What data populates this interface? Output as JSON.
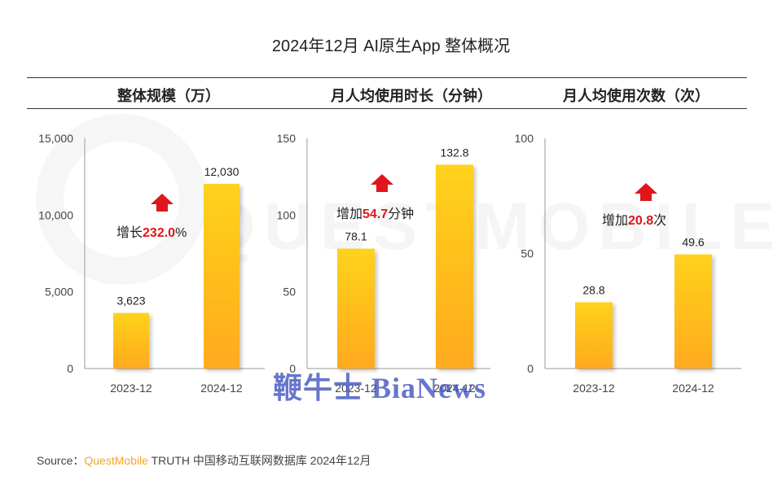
{
  "title": "2024年12月 AI原生App 整体概况",
  "colors": {
    "bar_top": "#ffd21a",
    "bar_bottom": "#ffaa20",
    "increase": "#e0161c",
    "axis": "#999999"
  },
  "watermark": {
    "logo": "QUESTMOBILE",
    "stamp": "鞭牛士 BiaNews"
  },
  "source": {
    "label": "Source：",
    "brand": "QuestMobile",
    "text": " TRUTH 中国移动互联网数据库 2024年12月"
  },
  "chart_data": [
    {
      "type": "bar",
      "title": "整体规模（万）",
      "categories": [
        "2023-12",
        "2024-12"
      ],
      "values": [
        3623,
        12030
      ],
      "value_labels": [
        "3,623",
        "12,030"
      ],
      "ylim": [
        0,
        15000
      ],
      "yticks": [
        0,
        5000,
        10000,
        15000
      ],
      "ytick_labels": [
        "0",
        "5,000",
        "10,000",
        "15,000"
      ],
      "annotation": {
        "prefix": "增长",
        "value": "232.0",
        "suffix": "%",
        "icon": "red-up-arrow-icon"
      }
    },
    {
      "type": "bar",
      "title": "月人均使用时长（分钟）",
      "categories": [
        "2023-12",
        "2024-12"
      ],
      "values": [
        78.1,
        132.8
      ],
      "value_labels": [
        "78.1",
        "132.8"
      ],
      "ylim": [
        0,
        150
      ],
      "yticks": [
        0,
        50,
        100,
        150
      ],
      "ytick_labels": [
        "0",
        "50",
        "100",
        "150"
      ],
      "annotation": {
        "prefix": "增加",
        "value": "54.7",
        "suffix": "分钟",
        "icon": "red-up-arrow-icon"
      }
    },
    {
      "type": "bar",
      "title": "月人均使用次数（次）",
      "categories": [
        "2023-12",
        "2024-12"
      ],
      "values": [
        28.8,
        49.6
      ],
      "value_labels": [
        "28.8",
        "49.6"
      ],
      "ylim": [
        0,
        100
      ],
      "yticks": [
        0,
        50,
        100
      ],
      "ytick_labels": [
        "0",
        "50",
        "100"
      ],
      "annotation": {
        "prefix": "增加",
        "value": "20.8",
        "suffix": "次",
        "icon": "red-up-arrow-icon"
      }
    }
  ]
}
